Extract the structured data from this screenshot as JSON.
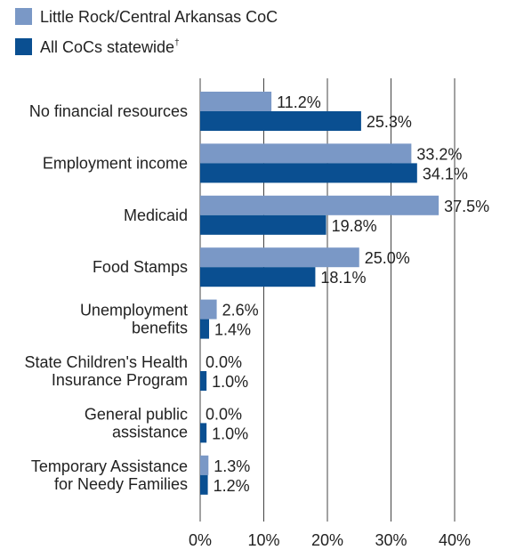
{
  "legend": {
    "series_a": "Little Rock/Central Arkansas CoC",
    "series_b": "All CoCs statewide",
    "series_b_mark": "†"
  },
  "colors": {
    "series_a": "#7a98c6",
    "series_b": "#0a4f91",
    "grid": "#444444",
    "text": "#222222"
  },
  "chart_data": {
    "type": "bar",
    "orientation": "horizontal",
    "categories": [
      [
        "No financial resources"
      ],
      [
        "Employment income"
      ],
      [
        "Medicaid"
      ],
      [
        "Food Stamps"
      ],
      [
        "Unemployment",
        "benefits"
      ],
      [
        "State Children's Health",
        "Insurance Program"
      ],
      [
        "General public",
        "assistance"
      ],
      [
        "Temporary Assistance",
        "for Needy Families"
      ]
    ],
    "series": [
      {
        "name": "Little Rock/Central Arkansas CoC",
        "values": [
          11.2,
          33.2,
          37.5,
          25.0,
          2.6,
          0.0,
          0.0,
          1.3
        ],
        "labels": [
          "11.2%",
          "33.2%",
          "37.5%",
          "25.0%",
          "2.6%",
          "0.0%",
          "0.0%",
          "1.3%"
        ]
      },
      {
        "name": "All CoCs statewide",
        "values": [
          25.3,
          34.1,
          19.8,
          18.1,
          1.4,
          1.0,
          1.0,
          1.2
        ],
        "labels": [
          "25.3%",
          "34.1%",
          "19.8%",
          "18.1%",
          "1.4%",
          "1.0%",
          "1.0%",
          "1.2%"
        ]
      }
    ],
    "xlim": [
      0,
      40
    ],
    "xticks": [
      0,
      10,
      20,
      30,
      40
    ],
    "xtick_labels": [
      "0%",
      "10%",
      "20%",
      "30%",
      "40%"
    ],
    "grid": true,
    "legend_position": "top-left"
  }
}
